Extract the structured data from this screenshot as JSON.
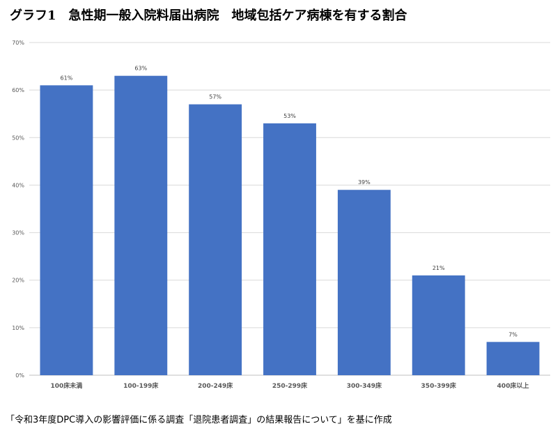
{
  "title": "グラフ1　急性期一般入院料届出病院　地域包括ケア病棟を有する割合",
  "source": "「令和3年度DPC導入の影響評価に係る調査「退院患者調査」の結果報告について」を基に作成",
  "colors": {
    "bar": "#4472C4",
    "grid": "#d9d9d9",
    "axis_text": "#595959"
  },
  "chart_data": {
    "type": "bar",
    "title": "グラフ1　急性期一般入院料届出病院　地域包括ケア病棟を有する割合",
    "xlabel": "",
    "ylabel": "",
    "ylim": [
      0,
      70
    ],
    "y_ticks": [
      0,
      10,
      20,
      30,
      40,
      50,
      60,
      70
    ],
    "y_tick_labels": [
      "0%",
      "10%",
      "20%",
      "30%",
      "40%",
      "50%",
      "60%",
      "70%"
    ],
    "categories": [
      "100床未満",
      "100-199床",
      "200-249床",
      "250-299床",
      "300-349床",
      "350-399床",
      "400床以上"
    ],
    "values": [
      61,
      63,
      57,
      53,
      39,
      21,
      7
    ],
    "data_labels": [
      "61%",
      "63%",
      "57%",
      "53%",
      "39%",
      "21%",
      "7%"
    ],
    "grid": true,
    "legend": "none"
  }
}
